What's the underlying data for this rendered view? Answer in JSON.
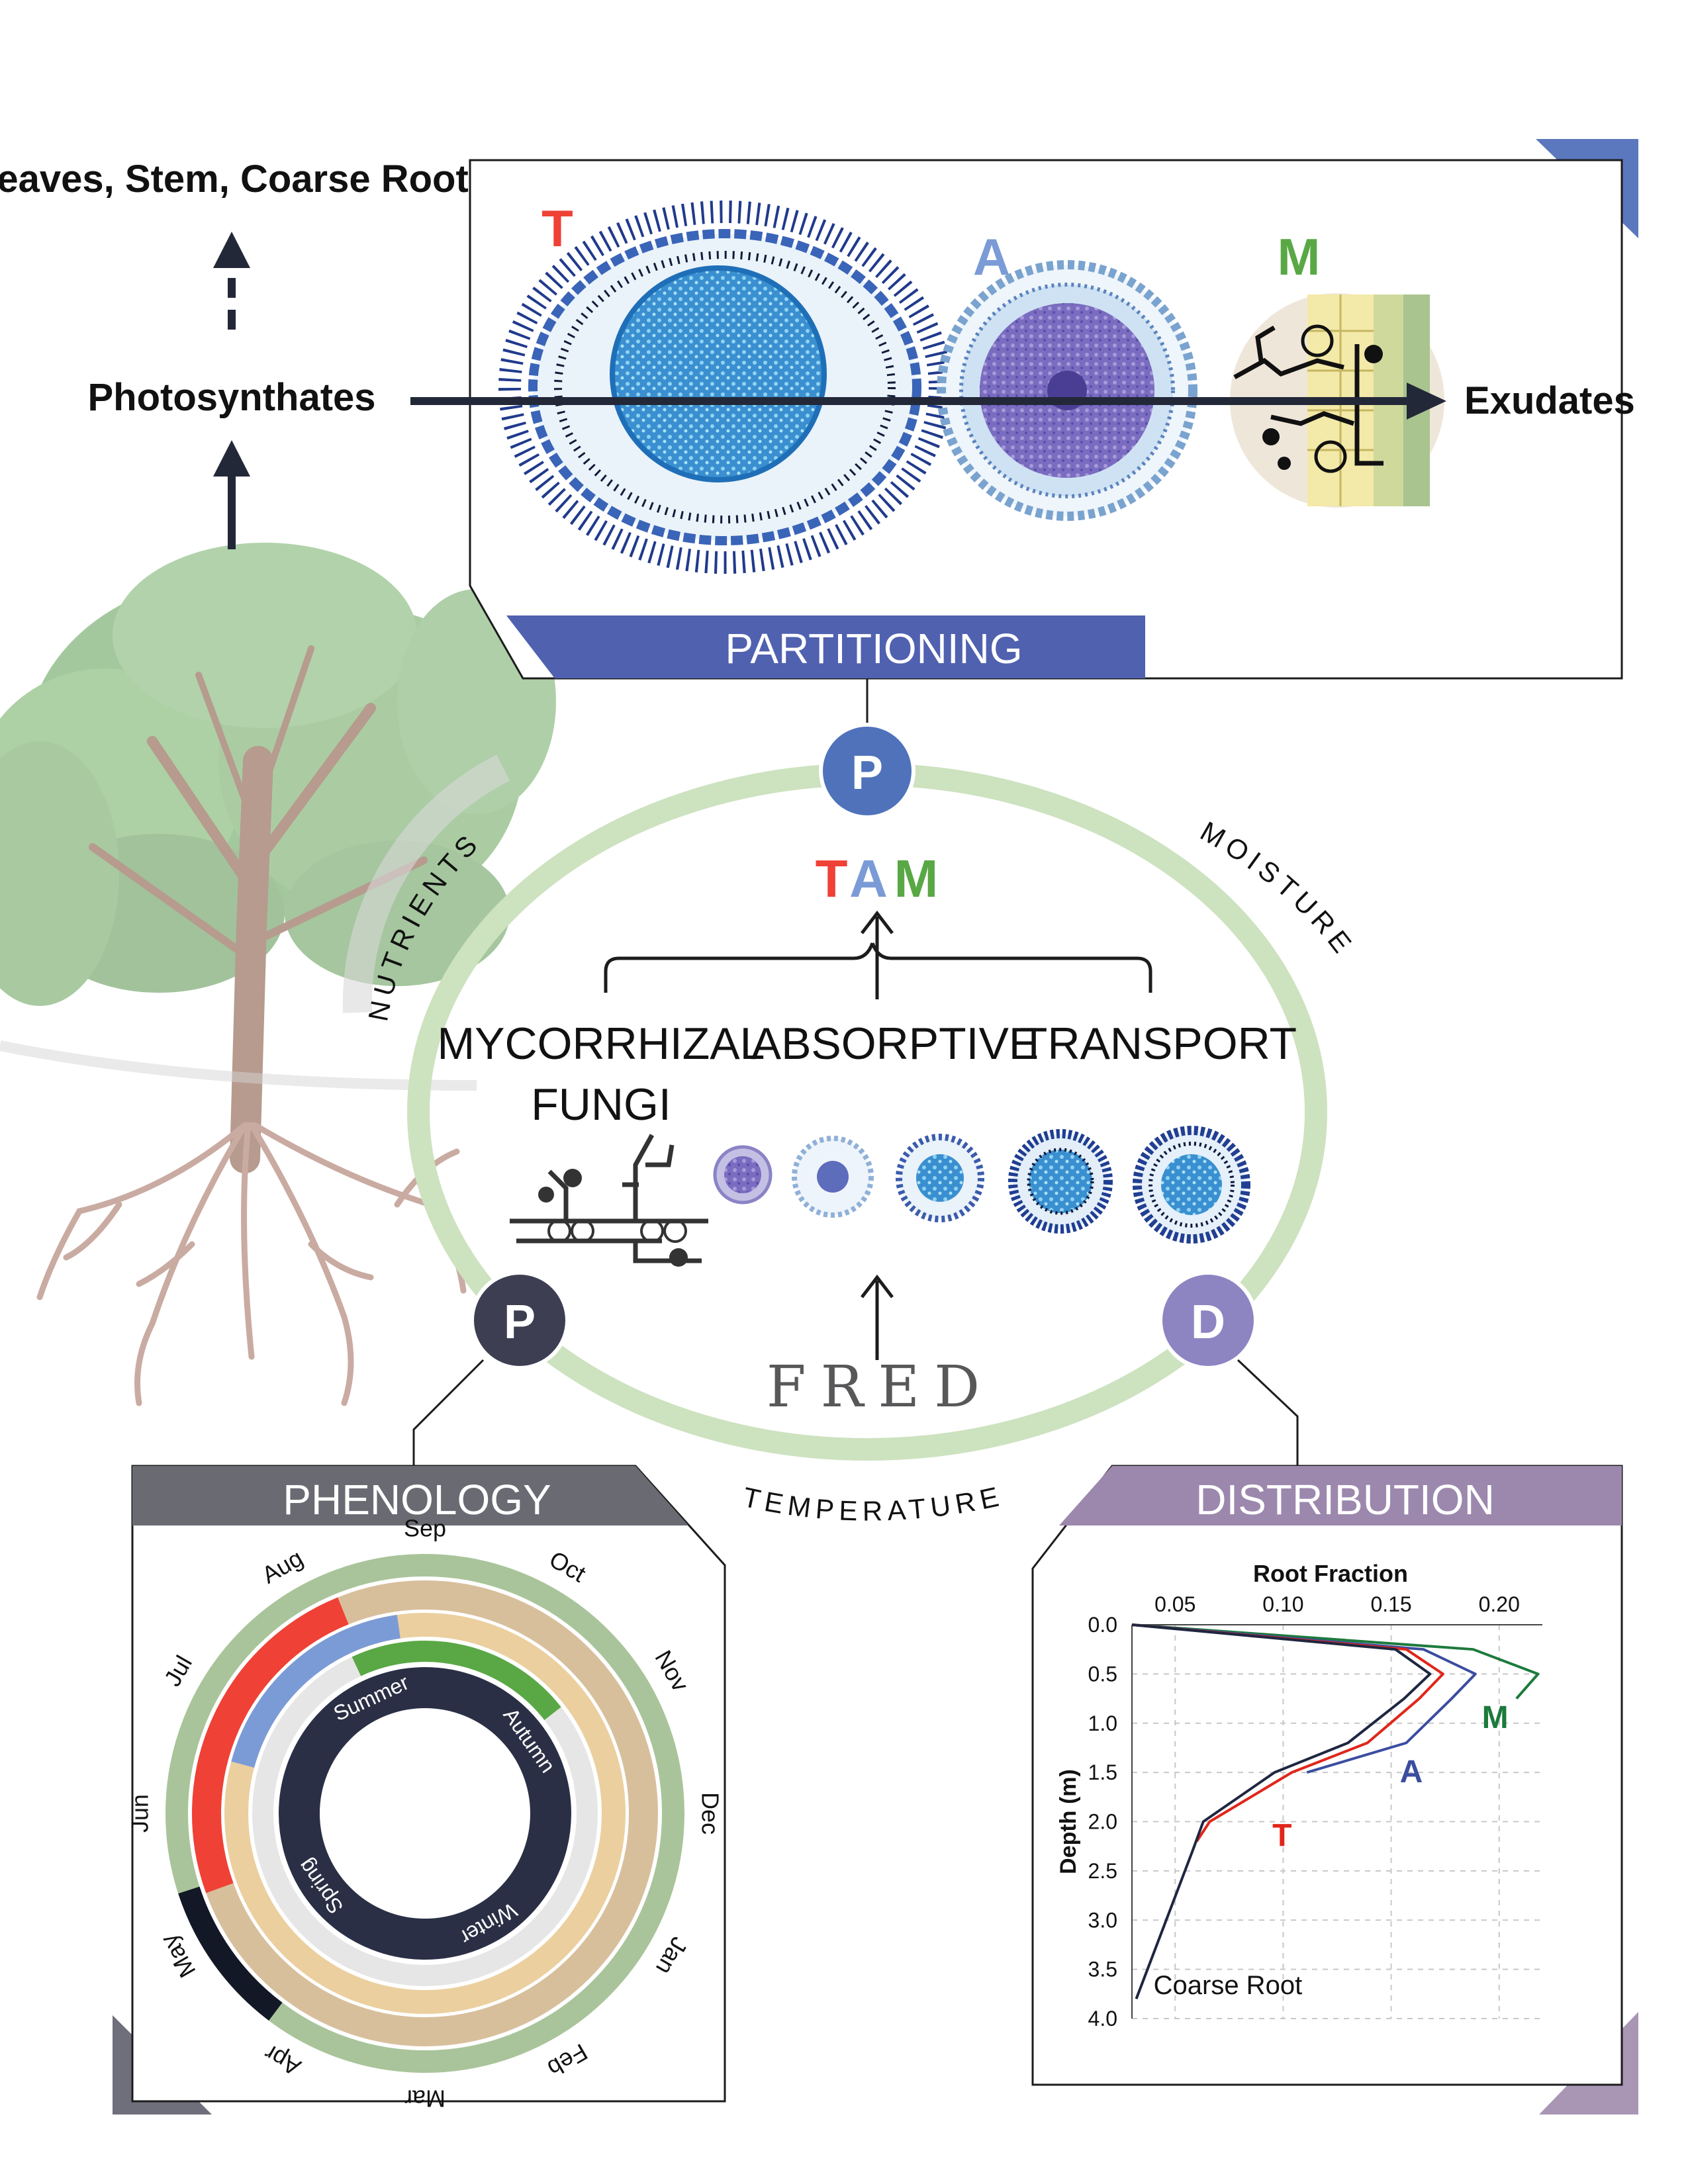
{
  "top_labels": {
    "leaves_stem": "Leaves, Stem, Coarse Roots",
    "photosynthates": "Photosynthates",
    "exudates": "Exudates"
  },
  "partitioning_panel": {
    "title": "PARTITIONING",
    "letters": [
      "T",
      "A",
      "M"
    ]
  },
  "center": {
    "top_badge": "P",
    "left_badge": "P",
    "right_badge": "D",
    "tam": [
      "T",
      "A",
      "M"
    ],
    "categories": [
      "MYCORRHIZAL",
      "FUNGI",
      "ABSORPTIVE",
      "TRANSPORT"
    ],
    "fred": "FRED",
    "ring_labels": {
      "nutrients": "NUTRIENTS",
      "moisture": "MOISTURE",
      "temperature": "TEMPERATURE"
    }
  },
  "phenology": {
    "title": "PHENOLOGY",
    "months": [
      "Sep",
      "Oct",
      "Nov",
      "Dec",
      "Jan",
      "Feb",
      "Mar",
      "Apr",
      "May",
      "Jun",
      "Jul",
      "Aug"
    ],
    "seasons": [
      "Summer",
      "Autumn",
      "Winter",
      "Spring"
    ]
  },
  "distribution": {
    "title": "DISTRIBUTION"
  },
  "colors": {
    "T": "#ef4136",
    "A": "#7b9bd6",
    "M": "#59a845",
    "partitioning": "#5061b0",
    "phenology": "#6a6a73",
    "distribution": "#9c87ad",
    "ring": "#cde2bf",
    "dark": "#2b2f45"
  },
  "chart_data": {
    "type": "line",
    "title": "Root Fraction",
    "xlabel": "Root Fraction",
    "ylabel": "Depth (m)",
    "xlim": [
      0.03,
      0.22
    ],
    "ylim": [
      0.0,
      4.0
    ],
    "x_ticks": [
      "0.05",
      "0.10",
      "0.15",
      "0.20"
    ],
    "y_ticks": [
      "0.0",
      "0.5",
      "1.0",
      "1.5",
      "2.0",
      "2.5",
      "3.0",
      "3.5",
      "4.0"
    ],
    "grid": true,
    "series": [
      {
        "name": "M",
        "color": "#1d7a3c",
        "points": [
          [
            0.03,
            0.0
          ],
          [
            0.188,
            0.25
          ],
          [
            0.218,
            0.5
          ],
          [
            0.208,
            0.75
          ]
        ]
      },
      {
        "name": "A",
        "color": "#3b4da0",
        "points": [
          [
            0.03,
            0.0
          ],
          [
            0.165,
            0.25
          ],
          [
            0.189,
            0.5
          ],
          [
            0.178,
            0.75
          ],
          [
            0.157,
            1.2
          ],
          [
            0.111,
            1.5
          ]
        ]
      },
      {
        "name": "T",
        "color": "#e0261b",
        "points": [
          [
            0.03,
            0.0
          ],
          [
            0.157,
            0.25
          ],
          [
            0.174,
            0.5
          ],
          [
            0.163,
            0.75
          ],
          [
            0.139,
            1.2
          ],
          [
            0.104,
            1.5
          ],
          [
            0.066,
            2.0
          ],
          [
            0.06,
            2.2
          ]
        ]
      },
      {
        "name": "Coarse Root",
        "color": "#1f2640",
        "points": [
          [
            0.03,
            0.0
          ],
          [
            0.152,
            0.25
          ],
          [
            0.168,
            0.5
          ],
          [
            0.156,
            0.75
          ],
          [
            0.13,
            1.2
          ],
          [
            0.096,
            1.5
          ],
          [
            0.063,
            2.0
          ],
          [
            0.058,
            2.3
          ],
          [
            0.032,
            3.8
          ]
        ]
      }
    ],
    "annotations": [
      "M",
      "A",
      "T",
      "Coarse Root"
    ]
  }
}
